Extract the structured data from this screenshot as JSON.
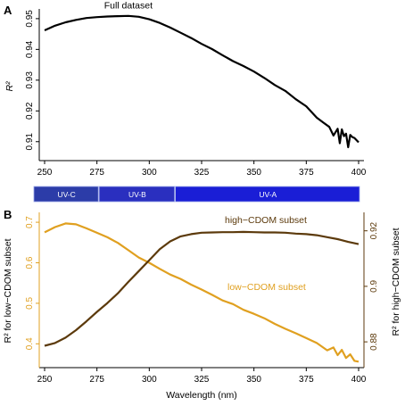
{
  "chart_data": [
    {
      "panel": "A",
      "type": "line",
      "ylabel": "R²",
      "xlim": [
        250,
        400
      ],
      "ylim": [
        0.905,
        0.952
      ],
      "x_ticks": [
        250,
        275,
        300,
        325,
        350,
        375,
        400
      ],
      "y_ticks": [
        0.91,
        0.92,
        0.93,
        0.94,
        0.95
      ],
      "y_tick_labels": [
        "0.91",
        "0.92",
        "0.93",
        "0.94",
        "0.95"
      ],
      "annotations": [
        {
          "text": "Full dataset",
          "x": 290,
          "y": 0.9515
        }
      ],
      "series": [
        {
          "color": "#000000",
          "x": [
            250,
            255,
            260,
            265,
            270,
            275,
            280,
            285,
            290,
            295,
            300,
            305,
            310,
            315,
            320,
            325,
            330,
            335,
            340,
            345,
            350,
            355,
            360,
            365,
            370,
            375,
            380,
            383,
            386,
            388,
            390,
            391,
            392,
            393,
            394,
            395,
            396,
            397,
            398,
            400
          ],
          "y": [
            0.9462,
            0.9477,
            0.9488,
            0.9496,
            0.9502,
            0.9505,
            0.9507,
            0.9508,
            0.9509,
            0.9506,
            0.9498,
            0.9486,
            0.9471,
            0.9454,
            0.9437,
            0.9418,
            0.9401,
            0.9381,
            0.9362,
            0.9346,
            0.9328,
            0.9307,
            0.9284,
            0.9265,
            0.9238,
            0.9215,
            0.9178,
            0.9163,
            0.9148,
            0.912,
            0.9142,
            0.9095,
            0.914,
            0.9118,
            0.9126,
            0.9082,
            0.9122,
            0.9115,
            0.9112,
            0.9098
          ]
        }
      ]
    },
    {
      "panel": "B",
      "type": "line",
      "xlabel": "Wavelength (nm)",
      "xlim": [
        250,
        400
      ],
      "x_ticks": [
        250,
        275,
        300,
        325,
        350,
        375,
        400
      ],
      "ylabel_left": "R² for low−CDOM subset",
      "ylabel_right": "R² for high−CDOM subset",
      "ylim_left": [
        0.35,
        0.72
      ],
      "ylim_right": [
        0.872,
        0.926
      ],
      "y_ticks_left": [
        0.4,
        0.5,
        0.6,
        0.7
      ],
      "y_tick_labels_left": [
        "0.4",
        "0.5",
        "0.6",
        "0.7"
      ],
      "y_ticks_right": [
        0.88,
        0.9,
        0.92
      ],
      "y_tick_labels_right": [
        "0.88",
        "0.9",
        "0.92"
      ],
      "uv_bands": [
        {
          "label": "UV-C",
          "from": 250,
          "to": 280,
          "color": "#2c3ca8"
        },
        {
          "label": "UV-B",
          "from": 280,
          "to": 315,
          "color": "#2a2fbf"
        },
        {
          "label": "UV-A",
          "from": 315,
          "to": 400,
          "color": "#1a1ed6"
        }
      ],
      "series": [
        {
          "name": "low−CDOM subset",
          "axis": "left",
          "color": "#e0a020",
          "x": [
            250,
            255,
            260,
            265,
            270,
            275,
            280,
            285,
            290,
            295,
            300,
            305,
            310,
            315,
            320,
            325,
            330,
            335,
            340,
            345,
            350,
            355,
            360,
            365,
            370,
            375,
            380,
            385,
            388,
            390,
            392,
            394,
            396,
            398,
            400
          ],
          "y": [
            0.675,
            0.688,
            0.697,
            0.695,
            0.685,
            0.674,
            0.663,
            0.649,
            0.631,
            0.613,
            0.6,
            0.585,
            0.571,
            0.56,
            0.546,
            0.534,
            0.521,
            0.507,
            0.498,
            0.484,
            0.474,
            0.463,
            0.449,
            0.437,
            0.426,
            0.414,
            0.402,
            0.384,
            0.391,
            0.372,
            0.385,
            0.365,
            0.374,
            0.358,
            0.356
          ]
        },
        {
          "name": "high−CDOM subset",
          "axis": "right",
          "color": "#5c3a0c",
          "x": [
            250,
            255,
            260,
            265,
            270,
            275,
            280,
            285,
            290,
            295,
            300,
            305,
            310,
            315,
            320,
            325,
            330,
            335,
            340,
            345,
            350,
            355,
            360,
            365,
            370,
            375,
            380,
            385,
            390,
            395,
            400
          ],
          "y": [
            0.8786,
            0.8796,
            0.8815,
            0.8842,
            0.8874,
            0.8908,
            0.894,
            0.8975,
            0.9016,
            0.9055,
            0.9094,
            0.9134,
            0.9162,
            0.918,
            0.9188,
            0.9193,
            0.9194,
            0.9195,
            0.9195,
            0.9196,
            0.9195,
            0.9194,
            0.9194,
            0.9193,
            0.919,
            0.9188,
            0.9184,
            0.9177,
            0.917,
            0.916,
            0.9152
          ]
        }
      ],
      "series_labels": [
        {
          "text": "high−CDOM subset",
          "series": 1
        },
        {
          "text": "low−CDOM subset",
          "series": 0
        }
      ]
    }
  ]
}
